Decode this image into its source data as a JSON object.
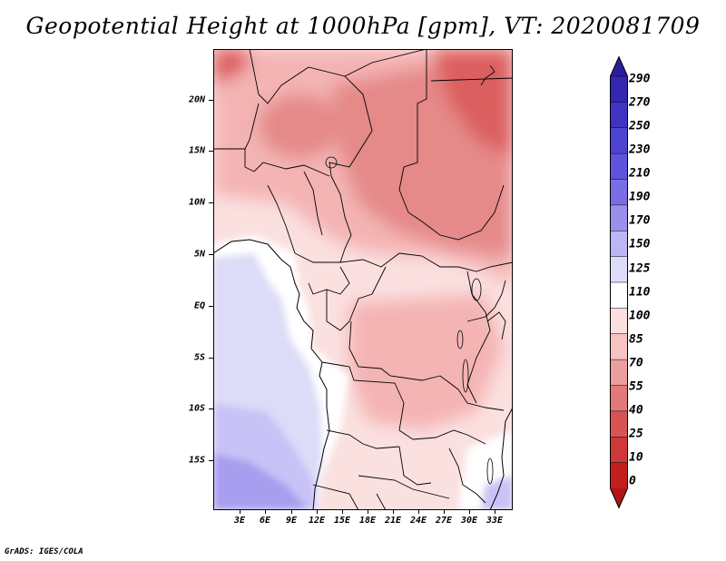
{
  "title": "Geopotential Height at 1000hPa [gpm], VT: 2020081709",
  "footer": "GrADS: IGES/COLA",
  "map": {
    "region": "Central Africa",
    "variable": "Geopotential Height",
    "level": "1000hPa",
    "units": "gpm",
    "valid_time": "2020081709",
    "lat_labels": [
      "20N",
      "15N",
      "10N",
      "5N",
      "EQ",
      "5S",
      "10S",
      "15S"
    ],
    "lat_values": [
      20,
      15,
      10,
      5,
      0,
      -5,
      -10,
      -15
    ],
    "lon_labels": [
      "3E",
      "6E",
      "9E",
      "12E",
      "15E",
      "18E",
      "21E",
      "24E",
      "27E",
      "30E",
      "33E"
    ],
    "lon_values": [
      3,
      6,
      9,
      12,
      15,
      18,
      21,
      24,
      27,
      30,
      33
    ],
    "lat_range": [
      -19.3,
      24.6
    ],
    "lon_range": [
      0.4,
      35.0
    ]
  },
  "colorbar": {
    "levels": [
      "290",
      "270",
      "250",
      "230",
      "210",
      "190",
      "170",
      "150",
      "125",
      "110",
      "100",
      "85",
      "70",
      "55",
      "40",
      "25",
      "10",
      "0"
    ],
    "colors": [
      "#2a1f99",
      "#3526b0",
      "#3f33c4",
      "#4d44d2",
      "#6052de",
      "#7a6ee6",
      "#9a90ec",
      "#bdb6f4",
      "#dcdcf8",
      "#ffffff",
      "#fbe0e0",
      "#f6c2c2",
      "#ec9d9d",
      "#e27a7a",
      "#d85454",
      "#cf3838",
      "#c41f1f",
      "#b01515"
    ]
  },
  "colors": {
    "ocean_low": "#dcdcf8",
    "ocean_mid": "#c8c2f6",
    "ocean_deep": "#a89ef0",
    "land_low": "#fbe0e0",
    "land_mid": "#f4b4b4",
    "land_high": "#e58989",
    "land_peak": "#dc5f5f"
  }
}
